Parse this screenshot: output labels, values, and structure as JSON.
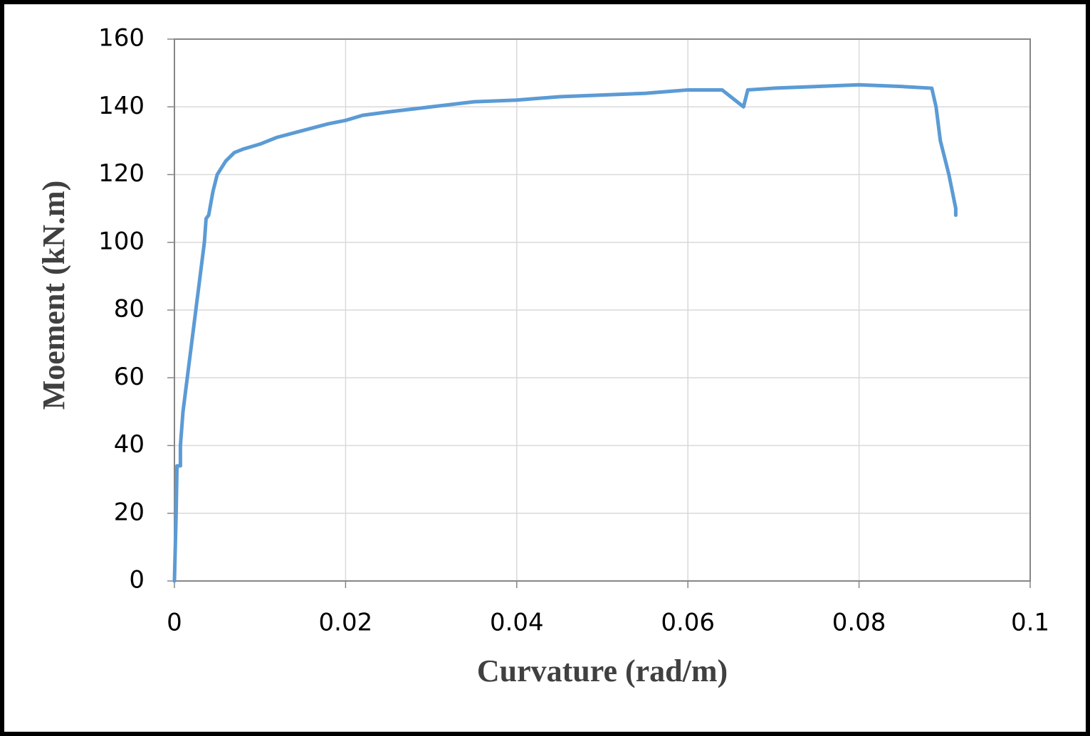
{
  "chart_data": {
    "type": "line",
    "x_label": "Curvature (rad/m)",
    "y_label": "Moement (kN.m)",
    "x": [
      0,
      0.0002,
      0.0003,
      0.0007,
      0.0007,
      0.001,
      0.0015,
      0.002,
      0.0025,
      0.003,
      0.0035,
      0.0037,
      0.004,
      0.0045,
      0.005,
      0.006,
      0.007,
      0.008,
      0.01,
      0.012,
      0.015,
      0.018,
      0.02,
      0.022,
      0.025,
      0.03,
      0.035,
      0.04,
      0.045,
      0.05,
      0.055,
      0.06,
      0.064,
      0.0665,
      0.067,
      0.07,
      0.075,
      0.08,
      0.085,
      0.0885,
      0.089,
      0.0895,
      0.0905,
      0.0913,
      0.0913
    ],
    "values": [
      0,
      20,
      34,
      34,
      40,
      50,
      60,
      70,
      80,
      90,
      100,
      107,
      108,
      115,
      120,
      124,
      126.5,
      127.5,
      129,
      131,
      133,
      135,
      136,
      137.5,
      138.5,
      140,
      141.5,
      142,
      143,
      143.5,
      144,
      145,
      145,
      140,
      145,
      145.5,
      146,
      146.5,
      146,
      145.5,
      140,
      130,
      120,
      110,
      108
    ],
    "color": "#5b9bd5",
    "xlim": [
      0,
      0.1
    ],
    "xticks": [
      0,
      0.02,
      0.04,
      0.06,
      0.08,
      0.1
    ],
    "ylim": [
      0,
      160
    ],
    "yticks": [
      0,
      20,
      40,
      60,
      80,
      100,
      120,
      140,
      160
    ],
    "grid": true
  }
}
